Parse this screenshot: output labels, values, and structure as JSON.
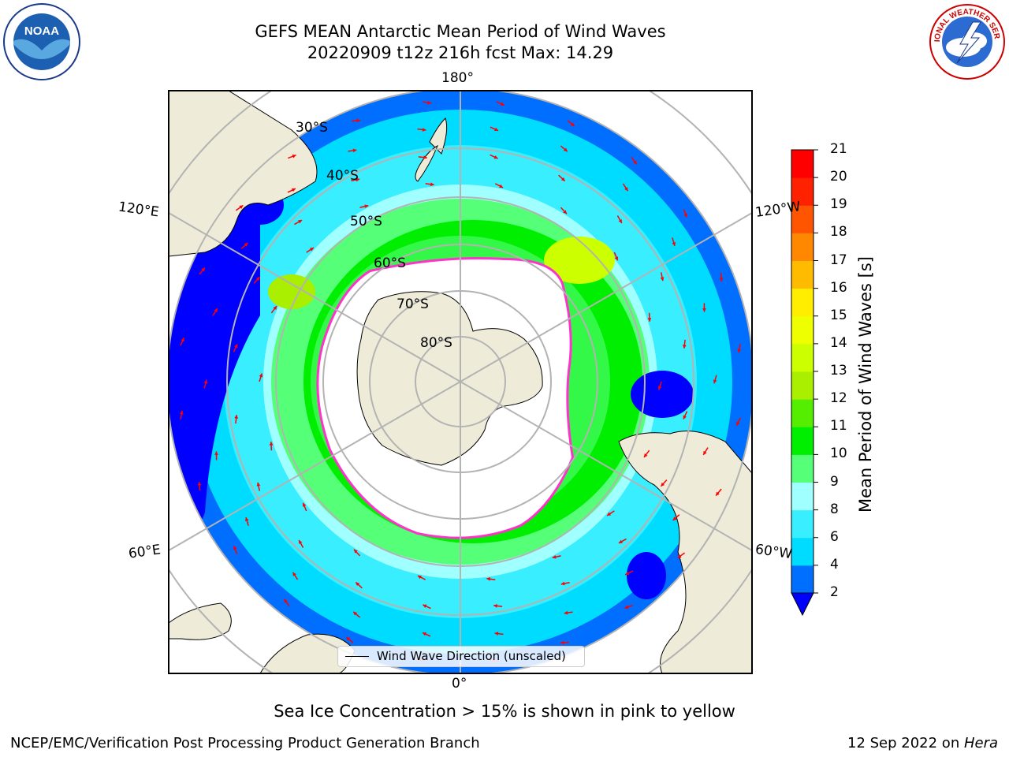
{
  "title": {
    "line1": "GEFS MEAN Antarctic Mean Period of Wind Waves",
    "line2": "20220909 t12z 216h fcst   Max: 14.29"
  },
  "logos": {
    "noaa": {
      "text": "NOAA",
      "ring_text_top": "NATIONAL OCEANIC AND ATMOSPHERIC ADMINISTRATION",
      "ring_text_bottom": "U.S. DEPARTMENT OF COMMERCE"
    },
    "nws": {
      "ring_text": "NATIONAL WEATHER SERVICE"
    }
  },
  "map": {
    "longitude_labels": {
      "top": "180°",
      "bottom": "0°",
      "upper_left": "120°E",
      "upper_right": "120°W",
      "lower_left": "60°E",
      "lower_right": "60°W"
    },
    "latitude_labels": [
      "30°S",
      "40°S",
      "50°S",
      "60°S",
      "70°S",
      "80°S"
    ],
    "legend_label": "Wind Wave Direction (unscaled)",
    "colors": {
      "land": "#eeecd9",
      "ocean_low": "#0000ff",
      "arrow": "#ff0000",
      "ice_edge": "#ff33cc"
    }
  },
  "colorbar": {
    "title": "Mean Period of Wind Waves [s]",
    "tick_labels": [
      "2",
      "4",
      "6",
      "8",
      "9",
      "10",
      "11",
      "12",
      "13",
      "14",
      "15",
      "16",
      "17",
      "18",
      "19",
      "20",
      "21"
    ],
    "levels": [
      2,
      4,
      6,
      8,
      9,
      10,
      11,
      12,
      13,
      14,
      15,
      16,
      17,
      18,
      19,
      20,
      21
    ],
    "colors": [
      "#0000ff",
      "#006eff",
      "#00dcff",
      "#38eeff",
      "#a0ffff",
      "#55ff77",
      "#00ee00",
      "#55ee00",
      "#aaee00",
      "#ccff00",
      "#eeff00",
      "#ffee00",
      "#ffbb00",
      "#ff8800",
      "#ff5500",
      "#ff2200",
      "#ff0000"
    ]
  },
  "caption": "Sea Ice Concentration > 15% is shown in pink to yellow",
  "footer": {
    "left": "NCEP/EMC/Verification Post Processing Product Generation Branch",
    "right_date": "12 Sep 2022 on ",
    "right_machine": "Hera"
  }
}
